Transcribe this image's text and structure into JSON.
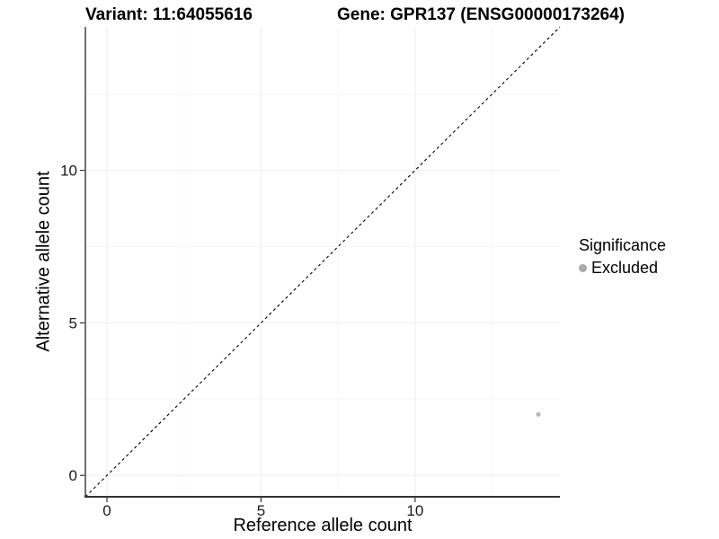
{
  "title": {
    "variant": "Variant: 11:64055616",
    "gene": "Gene: GPR137 (ENSG00000173264)"
  },
  "axes": {
    "x_label": "Reference allele count",
    "y_label": "Alternative allele count"
  },
  "legend": {
    "title": "Significance",
    "items": [
      {
        "label": "Excluded",
        "color": "#a9a9a9"
      }
    ]
  },
  "colors": {
    "background": "#ffffff",
    "axis_line": "#333333",
    "tick_label": "#1a1a1a",
    "major_gridline": "#ededed",
    "minor_gridline": "#f6f6f6",
    "reference_line": "#000000",
    "point": "#b8b8b8"
  },
  "chart_data": {
    "type": "scatter",
    "title": "Variant: 11:64055616   Gene: GPR137 (ENSG00000173264)",
    "xlabel": "Reference allele count",
    "ylabel": "Alternative allele count",
    "xlim": [
      -0.7,
      14.7
    ],
    "ylim": [
      -0.7,
      14.7
    ],
    "x_ticks": [
      0,
      5,
      10
    ],
    "y_ticks": [
      0,
      5,
      10
    ],
    "x_minor_ticks": [
      2.5,
      7.5,
      12.5
    ],
    "y_minor_ticks": [
      2.5,
      7.5,
      12.5
    ],
    "grid": "major+minor, very light gray on white",
    "legend_position": "right",
    "legend_title": "Significance",
    "series": [
      {
        "name": "Excluded",
        "color": "#b8b8b8",
        "points": [
          {
            "x": 14,
            "y": 2
          }
        ]
      }
    ],
    "reference_line": {
      "kind": "identity (y = x)",
      "style": "dashed",
      "color": "#000000",
      "from": [
        -0.7,
        -0.7
      ],
      "to": [
        14.7,
        14.7
      ]
    }
  }
}
